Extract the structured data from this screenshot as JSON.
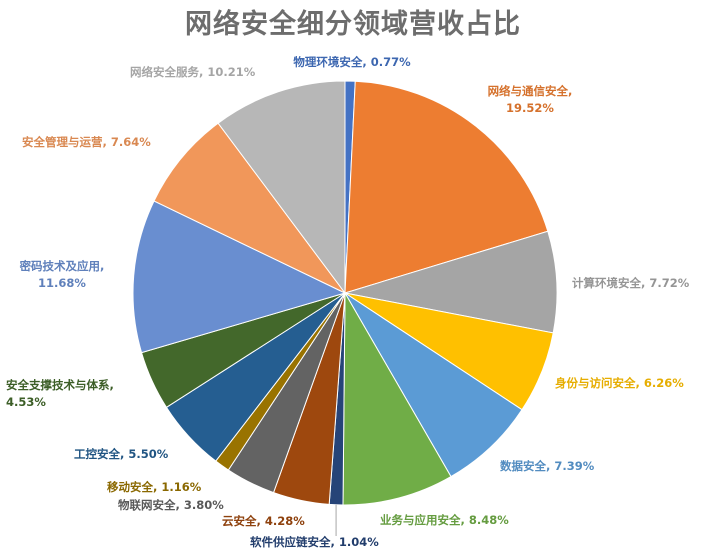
{
  "chart_data": {
    "type": "pie",
    "title": "网络安全细分领域营收占比",
    "slices": [
      {
        "name": "物理环境安全",
        "value": 0.77,
        "label": "物理环境安全, 0.77%",
        "color": "#4472c4"
      },
      {
        "name": "网络与通信安全",
        "value": 19.52,
        "label_lines": [
          "网络与通信安全,",
          "19.52%"
        ],
        "color": "#ed7d31"
      },
      {
        "name": "计算环境安全",
        "value": 7.72,
        "label": "计算环境安全, 7.72%",
        "color": "#a5a5a5"
      },
      {
        "name": "身份与访问安全",
        "value": 6.26,
        "label": "身份与访问安全, 6.26%",
        "color": "#ffc000"
      },
      {
        "name": "数据安全",
        "value": 7.39,
        "label": "数据安全, 7.39%",
        "color": "#5b9bd5"
      },
      {
        "name": "业务与应用安全",
        "value": 8.48,
        "label": "业务与应用安全, 8.48%",
        "color": "#70ad47"
      },
      {
        "name": "软件供应链安全",
        "value": 1.04,
        "label": "软件供应链安全, 1.04%",
        "color": "#264478"
      },
      {
        "name": "云安全",
        "value": 4.28,
        "label": "云安全, 4.28%",
        "color": "#9e480e"
      },
      {
        "name": "物联网安全",
        "value": 3.8,
        "label": "物联网安全, 3.80%",
        "color": "#636363"
      },
      {
        "name": "移动安全",
        "value": 1.16,
        "label": "移动安全, 1.16%",
        "color": "#997300"
      },
      {
        "name": "工控安全",
        "value": 5.5,
        "label": "工控安全, 5.50%",
        "color": "#255e91"
      },
      {
        "name": "安全支撑技术与体系",
        "value": 4.53,
        "label_lines": [
          "安全支撑技术与体系,",
          "4.53%"
        ],
        "color": "#43682b"
      },
      {
        "name": "密码技术及应用",
        "value": 11.68,
        "label_lines": [
          "密码技术及应用,",
          "11.68%"
        ],
        "color": "#698ed0"
      },
      {
        "name": "安全管理与运营",
        "value": 7.64,
        "label": "安全管理与运营, 7.64%",
        "color": "#f1975a"
      },
      {
        "name": "网络安全服务",
        "value": 10.21,
        "label": "网络安全服务, 10.21%",
        "color": "#b7b7b7"
      }
    ]
  }
}
